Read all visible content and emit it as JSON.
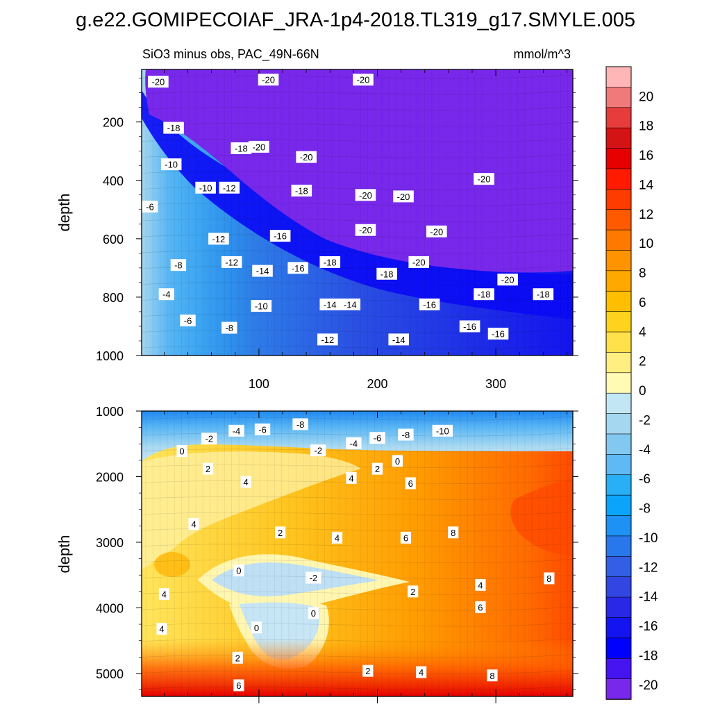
{
  "chart_data": {
    "type": "heatmap",
    "title": "g.e22.GOMIPECOIAF_JRA-1p4-2018.TL319_g17.SMYLE.005",
    "subtitle": "SiO3 minus obs, PAC_49N-66N",
    "units": "mmol/m^3",
    "colorbar": {
      "ticks": [
        "20",
        "18",
        "16",
        "14",
        "12",
        "10",
        "8",
        "6",
        "4",
        "2",
        "0",
        "-2",
        "-4",
        "-6",
        "-8",
        "-10",
        "-12",
        "-14",
        "-16",
        "-18",
        "-20"
      ],
      "colors": [
        "#ffb6b6",
        "#f07a7a",
        "#e63c3c",
        "#d41414",
        "#e60000",
        "#ff1a00",
        "#ff3c00",
        "#ff5a00",
        "#ff7800",
        "#ff9400",
        "#ffa800",
        "#ffbf00",
        "#ffd21e",
        "#ffe14b",
        "#ffee82",
        "#fffab4",
        "#c3e6f5",
        "#a5d7f0",
        "#82c8f0",
        "#5fb9f5",
        "#28aff5",
        "#0aa5fa",
        "#1e91f5",
        "#2878eb",
        "#325fe6",
        "#3246e1",
        "#2828e6",
        "#1414f0",
        "#0000ff",
        "#4614f0",
        "#7828eb"
      ]
    },
    "panels": [
      {
        "name": "upper",
        "xlabel": "",
        "ylabel": "depth",
        "xlim": [
          1,
          365
        ],
        "ylim": [
          1000,
          20
        ],
        "xticks": [
          "100",
          "200",
          "300"
        ],
        "yticks": [
          "200",
          "400",
          "600",
          "800",
          "1000"
        ],
        "contour_labels": [
          {
            "text": "-20",
            "x": 15,
            "y": 62
          },
          {
            "text": "-20",
            "x": 108,
            "y": 55
          },
          {
            "text": "-20",
            "x": 188,
            "y": 55
          },
          {
            "text": "-18",
            "x": 28,
            "y": 220
          },
          {
            "text": "-18",
            "x": 85,
            "y": 290
          },
          {
            "text": "-20",
            "x": 100,
            "y": 285
          },
          {
            "text": "-20",
            "x": 140,
            "y": 320
          },
          {
            "text": "-10",
            "x": 26,
            "y": 345
          },
          {
            "text": "-10",
            "x": 55,
            "y": 425
          },
          {
            "text": "-12",
            "x": 75,
            "y": 425
          },
          {
            "text": "-18",
            "x": 136,
            "y": 435
          },
          {
            "text": "-20",
            "x": 190,
            "y": 450
          },
          {
            "text": "-20",
            "x": 222,
            "y": 455
          },
          {
            "text": "-20",
            "x": 290,
            "y": 395
          },
          {
            "text": "-6",
            "x": 8,
            "y": 490
          },
          {
            "text": "-20",
            "x": 190,
            "y": 570
          },
          {
            "text": "-20",
            "x": 250,
            "y": 575
          },
          {
            "text": "-12",
            "x": 66,
            "y": 600
          },
          {
            "text": "-16",
            "x": 118,
            "y": 590
          },
          {
            "text": "-8",
            "x": 32,
            "y": 690
          },
          {
            "text": "-12",
            "x": 77,
            "y": 680
          },
          {
            "text": "-14",
            "x": 103,
            "y": 710
          },
          {
            "text": "-16",
            "x": 133,
            "y": 700
          },
          {
            "text": "-18",
            "x": 160,
            "y": 680
          },
          {
            "text": "-18",
            "x": 208,
            "y": 720
          },
          {
            "text": "-20",
            "x": 235,
            "y": 680
          },
          {
            "text": "-20",
            "x": 310,
            "y": 740
          },
          {
            "text": "-4",
            "x": 22,
            "y": 790
          },
          {
            "text": "-18",
            "x": 290,
            "y": 790
          },
          {
            "text": "-18",
            "x": 340,
            "y": 790
          },
          {
            "text": "-10",
            "x": 102,
            "y": 830
          },
          {
            "text": "-14",
            "x": 160,
            "y": 825
          },
          {
            "text": "-14",
            "x": 177,
            "y": 825
          },
          {
            "text": "-16",
            "x": 244,
            "y": 825
          },
          {
            "text": "-6",
            "x": 40,
            "y": 880
          },
          {
            "text": "-8",
            "x": 75,
            "y": 905
          },
          {
            "text": "-16",
            "x": 278,
            "y": 900
          },
          {
            "text": "-16",
            "x": 302,
            "y": 925
          },
          {
            "text": "-12",
            "x": 158,
            "y": 945
          },
          {
            "text": "-14",
            "x": 218,
            "y": 945
          }
        ]
      },
      {
        "name": "lower",
        "xlabel": "",
        "ylabel": "depth",
        "xlim": [
          1,
          365
        ],
        "ylim": [
          5350,
          1000
        ],
        "xticks": [],
        "yticks": [
          "1000",
          "2000",
          "3000",
          "4000",
          "5000"
        ],
        "contour_labels": [
          {
            "text": "-2",
            "x": 58,
            "y": 1420
          },
          {
            "text": "-4",
            "x": 81,
            "y": 1300
          },
          {
            "text": "-6",
            "x": 103,
            "y": 1280
          },
          {
            "text": "-8",
            "x": 135,
            "y": 1200
          },
          {
            "text": "-10",
            "x": 255,
            "y": 1300
          },
          {
            "text": "-4",
            "x": 180,
            "y": 1490
          },
          {
            "text": "-6",
            "x": 200,
            "y": 1410
          },
          {
            "text": "-8",
            "x": 224,
            "y": 1360
          },
          {
            "text": "-2",
            "x": 150,
            "y": 1600
          },
          {
            "text": "0",
            "x": 35,
            "y": 1610
          },
          {
            "text": "0",
            "x": 217,
            "y": 1760
          },
          {
            "text": "2",
            "x": 57,
            "y": 1880
          },
          {
            "text": "2",
            "x": 200,
            "y": 1880
          },
          {
            "text": "4",
            "x": 89,
            "y": 2080
          },
          {
            "text": "4",
            "x": 178,
            "y": 2020
          },
          {
            "text": "6",
            "x": 228,
            "y": 2100
          },
          {
            "text": "4",
            "x": 45,
            "y": 2720
          },
          {
            "text": "2",
            "x": 118,
            "y": 2850
          },
          {
            "text": "4",
            "x": 166,
            "y": 2930
          },
          {
            "text": "6",
            "x": 224,
            "y": 2930
          },
          {
            "text": "8",
            "x": 264,
            "y": 2850
          },
          {
            "text": "0",
            "x": 83,
            "y": 3430
          },
          {
            "text": "-2",
            "x": 146,
            "y": 3540
          },
          {
            "text": "4",
            "x": 287,
            "y": 3650
          },
          {
            "text": "8",
            "x": 345,
            "y": 3550
          },
          {
            "text": "2",
            "x": 230,
            "y": 3750
          },
          {
            "text": "4",
            "x": 20,
            "y": 3790
          },
          {
            "text": "6",
            "x": 287,
            "y": 3990
          },
          {
            "text": "0",
            "x": 146,
            "y": 4080
          },
          {
            "text": "4",
            "x": 18,
            "y": 4320
          },
          {
            "text": "0",
            "x": 98,
            "y": 4300
          },
          {
            "text": "2",
            "x": 82,
            "y": 4760
          },
          {
            "text": "2",
            "x": 192,
            "y": 4960
          },
          {
            "text": "4",
            "x": 237,
            "y": 4980
          },
          {
            "text": "8",
            "x": 297,
            "y": 5030
          },
          {
            "text": "6",
            "x": 83,
            "y": 5180
          }
        ]
      }
    ]
  }
}
